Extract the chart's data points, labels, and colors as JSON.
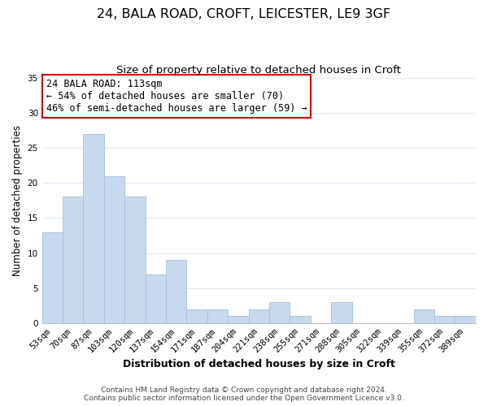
{
  "title": "24, BALA ROAD, CROFT, LEICESTER, LE9 3GF",
  "subtitle": "Size of property relative to detached houses in Croft",
  "xlabel": "Distribution of detached houses by size in Croft",
  "ylabel": "Number of detached properties",
  "categories": [
    "53sqm",
    "70sqm",
    "87sqm",
    "103sqm",
    "120sqm",
    "137sqm",
    "154sqm",
    "171sqm",
    "187sqm",
    "204sqm",
    "221sqm",
    "238sqm",
    "255sqm",
    "271sqm",
    "288sqm",
    "305sqm",
    "322sqm",
    "339sqm",
    "355sqm",
    "372sqm",
    "389sqm"
  ],
  "values": [
    13,
    18,
    27,
    21,
    18,
    7,
    9,
    2,
    2,
    1,
    2,
    3,
    1,
    0,
    3,
    0,
    0,
    0,
    2,
    1,
    1
  ],
  "bar_color": "#c8d9ed",
  "bar_edge_color": "#a8bfd8",
  "annotation_line1": "24 BALA ROAD: 113sqm",
  "annotation_line2": "← 54% of detached houses are smaller (70)",
  "annotation_line3": "46% of semi-detached houses are larger (59) →",
  "annotation_box_edge_color": "#cc0000",
  "annotation_box_facecolor": "#ffffff",
  "ylim": [
    0,
    35
  ],
  "yticks": [
    0,
    5,
    10,
    15,
    20,
    25,
    30,
    35
  ],
  "footer_line1": "Contains HM Land Registry data © Crown copyright and database right 2024.",
  "footer_line2": "Contains public sector information licensed under the Open Government Licence v3.0.",
  "background_color": "#ffffff",
  "grid_color": "#dce8f5",
  "title_fontsize": 11.5,
  "subtitle_fontsize": 9.5,
  "xlabel_fontsize": 9,
  "ylabel_fontsize": 8.5,
  "tick_fontsize": 7.5,
  "annotation_fontsize": 8.5,
  "footer_fontsize": 6.5
}
